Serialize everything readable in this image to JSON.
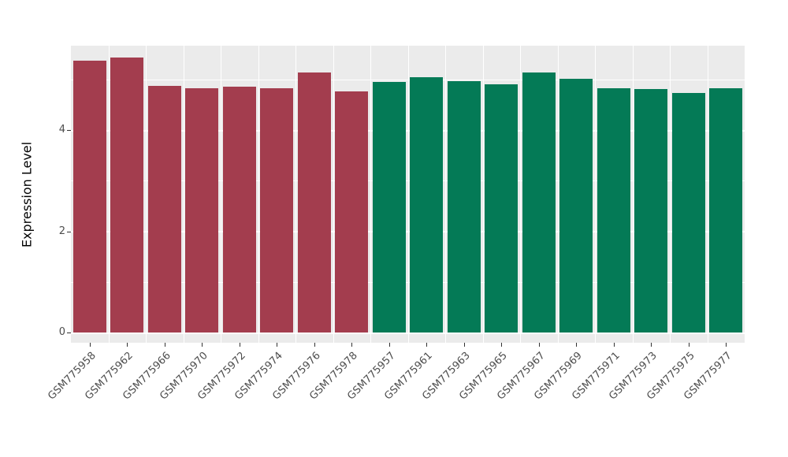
{
  "figure": {
    "background": "#FFFFFF",
    "panel_background": "#EBEBEB",
    "grid_color": "#FFFFFF",
    "axis_text_color": "#4D4D4D",
    "axis_title_color": "#000000"
  },
  "chart_data": {
    "type": "bar",
    "title": "",
    "xlabel": "",
    "ylabel": "Expression Level",
    "ylim": [
      0,
      5.66
    ],
    "yticks": [
      0,
      2,
      4
    ],
    "yminor": [
      1,
      3,
      5
    ],
    "grid": true,
    "legend_position": "none",
    "categories": [
      "GSM775958",
      "GSM775962",
      "GSM775966",
      "GSM775970",
      "GSM775972",
      "GSM775974",
      "GSM775976",
      "GSM775978",
      "GSM775957",
      "GSM775961",
      "GSM775963",
      "GSM775965",
      "GSM775967",
      "GSM775969",
      "GSM775971",
      "GSM775973",
      "GSM775975",
      "GSM775977"
    ],
    "values": [
      5.37,
      5.44,
      4.88,
      4.82,
      4.85,
      4.82,
      5.13,
      4.76,
      4.95,
      5.05,
      4.96,
      4.91,
      5.13,
      5.01,
      4.82,
      4.81,
      4.73,
      4.83
    ],
    "groups": [
      "group1",
      "group1",
      "group1",
      "group1",
      "group1",
      "group1",
      "group1",
      "group1",
      "group2",
      "group2",
      "group2",
      "group2",
      "group2",
      "group2",
      "group2",
      "group2",
      "group2",
      "group2"
    ],
    "group_colors": {
      "group1": "#A33D4E",
      "group2": "#047A56"
    }
  }
}
